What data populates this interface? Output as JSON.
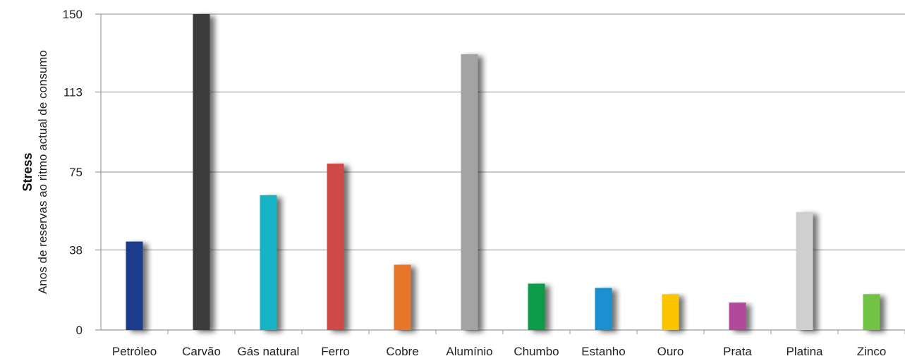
{
  "chart_data": {
    "type": "bar",
    "ylabel_bold": "Stress",
    "ylabel": "Anos de reservas ao ritmo actual de consumo",
    "ylim": [
      0,
      150
    ],
    "yticks": [
      0,
      38,
      75,
      113,
      150
    ],
    "grid": true,
    "categories": [
      "Petróleo",
      "Carvão",
      "Gás natural",
      "Ferro",
      "Cobre",
      "Alumínio",
      "Chumbo",
      "Estanho",
      "Ouro",
      "Prata",
      "Platina",
      "Zinco"
    ],
    "values": [
      42,
      150,
      64,
      79,
      31,
      131,
      22,
      20,
      17,
      13,
      56,
      17
    ],
    "colors": [
      "#1f3a8c",
      "#3b3b3b",
      "#13b3c4",
      "#d04848",
      "#e8762a",
      "#a3a3a3",
      "#0d9a48",
      "#1d8fd0",
      "#fcc300",
      "#b34a9a",
      "#cfcfcf",
      "#72c244"
    ]
  }
}
